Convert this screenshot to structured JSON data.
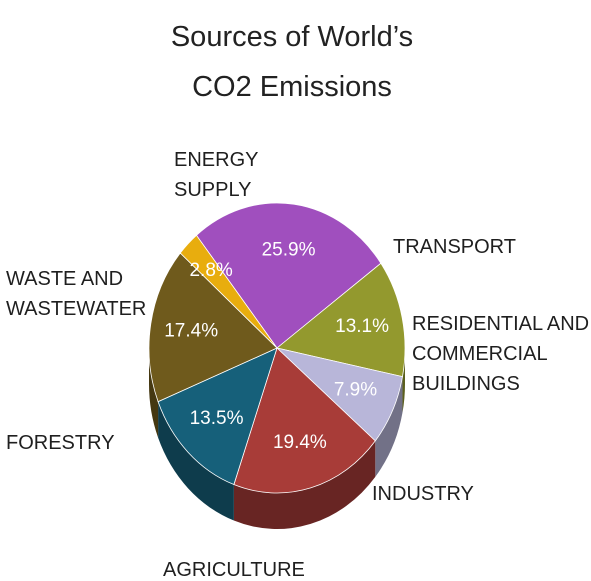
{
  "chart_data": {
    "type": "pie",
    "title_lines": [
      "Sources of World’s",
      "CO2 Emissions"
    ],
    "slices": [
      {
        "label_lines": [
          "ENERGY",
          "SUPPLY"
        ],
        "value_label": "25.9%",
        "value": 25.9,
        "color": "#a04fbe"
      },
      {
        "label_lines": [
          "TRANSPORT"
        ],
        "value_label": "13.1%",
        "value": 13.1,
        "color": "#93992e"
      },
      {
        "label_lines": [
          "RESIDENTIAL AND",
          "COMMERCIAL",
          "BUILDINGS"
        ],
        "value_label": "7.9%",
        "value": 7.9,
        "color": "#b8b6d9"
      },
      {
        "label_lines": [
          "INDUSTRY"
        ],
        "value_label": "19.4%",
        "value": 19.4,
        "color": "#a83c38"
      },
      {
        "label_lines": [
          "AGRICULTURE"
        ],
        "value_label": "13.5%",
        "value": 13.5,
        "color": "#16607a"
      },
      {
        "label_lines": [
          "FORESTRY"
        ],
        "value_label": "17.4%",
        "value": 17.4,
        "color": "#6f5a1c"
      },
      {
        "label_lines": [
          "WASTE AND",
          "WASTEWATER"
        ],
        "value_label": "2.8%",
        "value": 2.8,
        "color": "#e8ad0e"
      }
    ]
  }
}
